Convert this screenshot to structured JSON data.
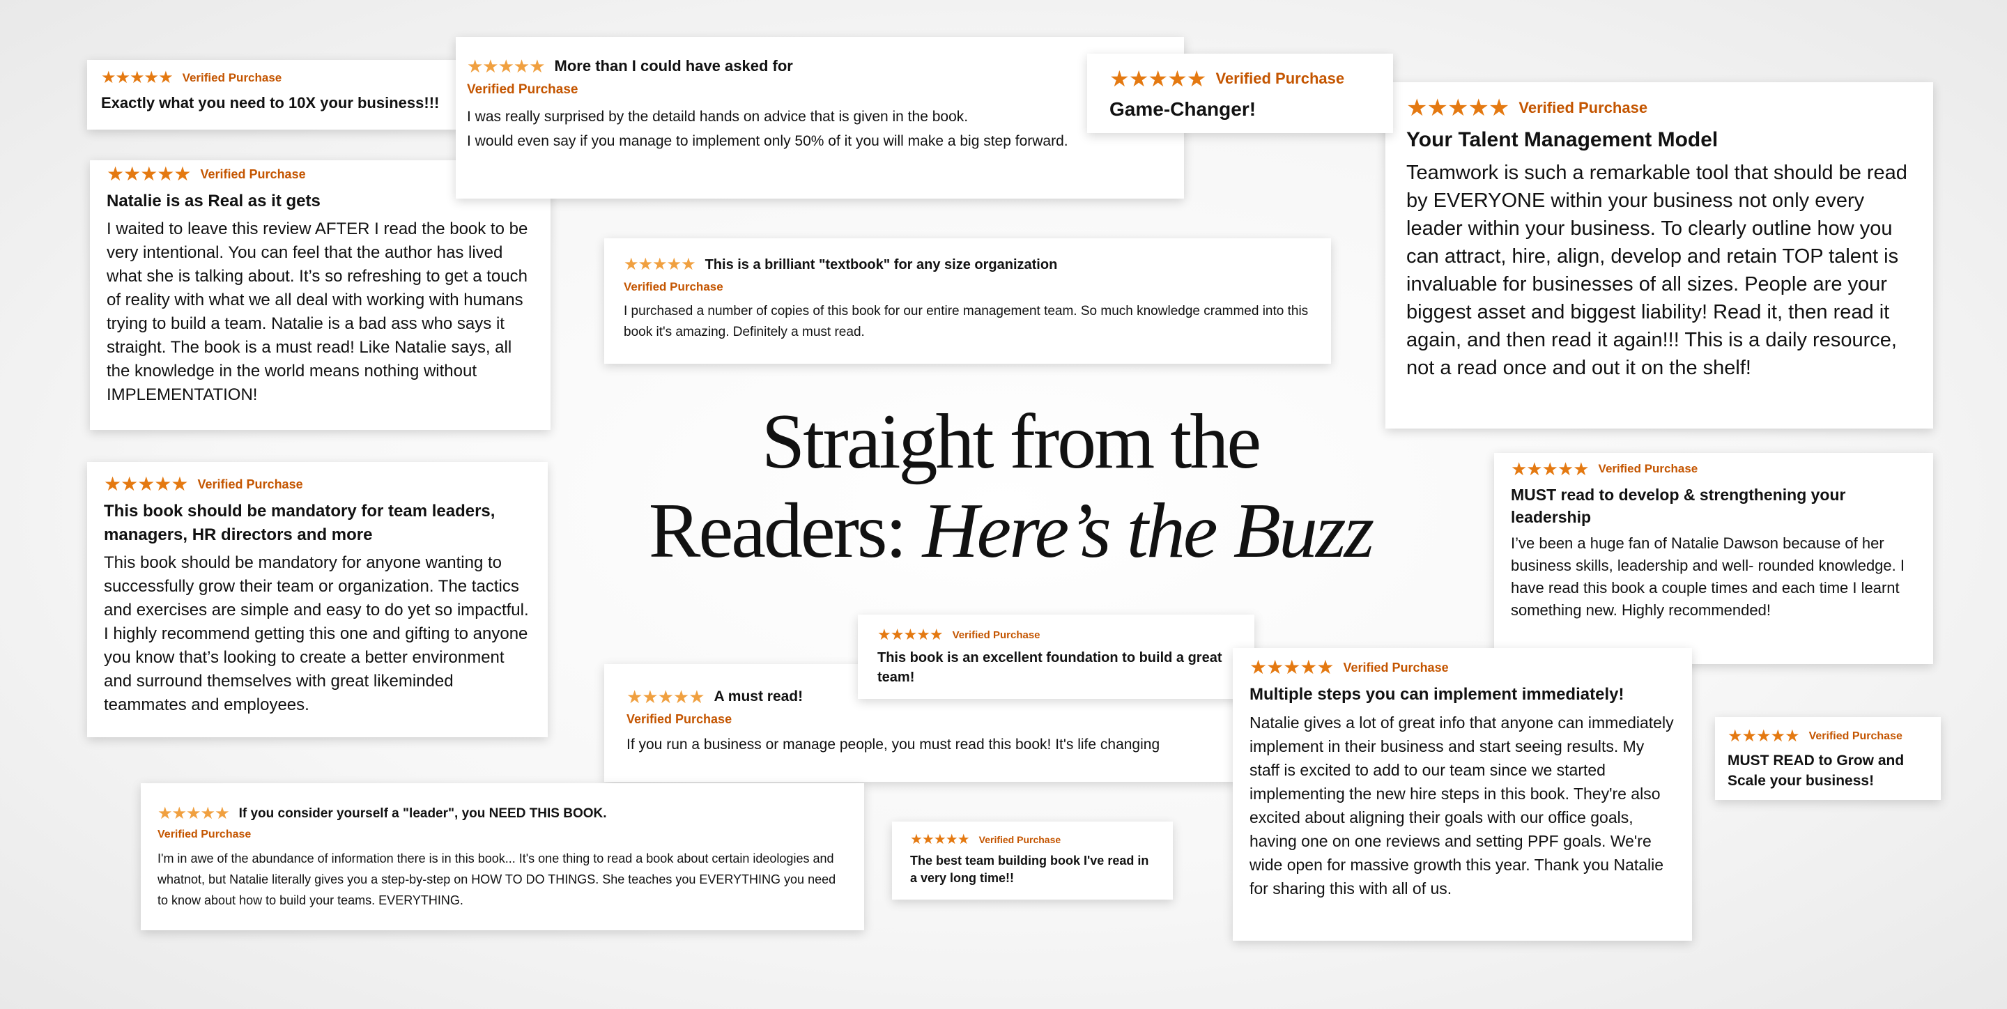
{
  "headline": {
    "line1": "Straight from the",
    "line2_plain": "Readers: ",
    "line2_italic": "Here’s the Buzz"
  },
  "colors": {
    "star": "#e47911",
    "verified": "#c45500",
    "text": "#111111"
  },
  "star_icon": "star-icon",
  "reviews": [
    {
      "rating": 5,
      "layout": "stacked",
      "verified": "Verified Purchase",
      "title": "Exactly what you need to 10X your business!!!",
      "body": ""
    },
    {
      "rating": 5,
      "layout": "inline",
      "verified": "Verified Purchase",
      "title": "More than I could have asked for",
      "body": "I was really surprised by the detaild hands on advice that is given in the book.\nI would even say if you manage to implement only 50% of it you will make a big step forward."
    },
    {
      "rating": 5,
      "layout": "stacked",
      "verified": "Verified Purchase",
      "title": "Game-Changer!",
      "body": ""
    },
    {
      "rating": 5,
      "layout": "stacked",
      "verified": "Verified Purchase",
      "title": "Your Talent Management Model",
      "body": "Teamwork is such a remarkable tool that should be read by EVERYONE within your business not only every leader within your business. To clearly outline how you can attract, hire, align, develop and retain TOP talent is invaluable for businesses of all sizes. People are your biggest asset and biggest liability! Read it, then read it again, and then read it again!!! This is a daily resource, not a read once and out it on the shelf!"
    },
    {
      "rating": 5,
      "layout": "stacked",
      "verified": "Verified Purchase",
      "title": "Natalie is as Real as it gets",
      "body": "I waited to leave this review AFTER I read the book to be very intentional. You can feel that the author has lived what she is talking about. It’s so refreshing to get a touch of reality with what we all deal with working with humans trying to build a team. Natalie is a bad ass who says it straight. The book is a must read! Like Natalie says, all the knowledge in the world means nothing without IMPLEMENTATION!"
    },
    {
      "rating": 5,
      "layout": "inline",
      "verified": "Verified Purchase",
      "title": "This is a brilliant \"textbook\" for any size organization",
      "body": "I purchased a number of copies of this book for our entire management team. So much knowledge crammed into this book it's amazing. Definitely a must read."
    },
    {
      "rating": 5,
      "layout": "stacked",
      "verified": "Verified Purchase",
      "title": "This book should be mandatory for team leaders, managers, HR directors and more",
      "body": "This book should be mandatory for anyone wanting to successfully grow their team or organization. The tactics and exercises are simple and easy to do yet so impactful. I highly recommend getting this one and gifting to anyone you know that’s looking to create a better environment and surround themselves with great likeminded teammates and employees."
    },
    {
      "rating": 5,
      "layout": "stacked",
      "verified": "Verified Purchase",
      "title": "MUST read to develop & strengthening your leadership",
      "body": "I’ve been a huge fan of Natalie Dawson because of her business skills, leadership and well- rounded knowledge. I have read this book a couple times and each time I learnt something new. Highly recommended!"
    },
    {
      "rating": 5,
      "layout": "inline",
      "verified": "Verified Purchase",
      "title": "A must read!",
      "body": "If you run a business or manage people, you must read this book! It's life changing"
    },
    {
      "rating": 5,
      "layout": "stacked",
      "verified": "Verified Purchase",
      "title": "This book is an excellent foundation to build a great team!",
      "body": ""
    },
    {
      "rating": 5,
      "layout": "stacked",
      "verified": "Verified Purchase",
      "title": "Multiple steps you can implement immediately!",
      "body": "Natalie gives a lot of great info that anyone can immediately implement in their business and start seeing results. My staff is excited to add to our team since we started implementing the new hire steps in this book. They're also excited about aligning their goals with our office goals, having one on one reviews and setting PPF goals. We're wide open for massive growth this year. Thank you Natalie for sharing this with all of us."
    },
    {
      "rating": 5,
      "layout": "stacked",
      "verified": "Verified Purchase",
      "title": "MUST READ to Grow and Scale your business!",
      "body": ""
    },
    {
      "rating": 5,
      "layout": "inline",
      "verified": "Verified Purchase",
      "title": "If you consider yourself a \"leader\", you NEED THIS BOOK.",
      "body": "I'm in awe of the abundance of information there is in this book... It's one thing to read a book about certain ideologies and whatnot, but Natalie literally gives you a step-by-step on HOW TO DO THINGS. She teaches you EVERYTHING you need to know about how to build your teams. EVERYTHING."
    },
    {
      "rating": 5,
      "layout": "stacked",
      "verified": "Verified Purchase",
      "title": "The best team building book I've read in a very long time!!",
      "body": ""
    }
  ]
}
